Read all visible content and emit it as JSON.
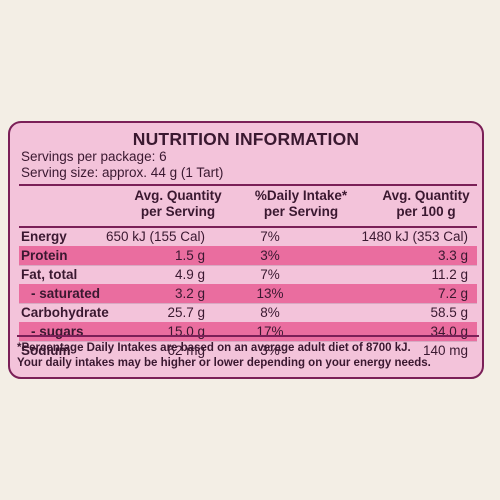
{
  "panel": {
    "title": "NUTRITION INFORMATION",
    "servings_per_package": "Servings per package: 6",
    "serving_size": "Serving size: approx. 44 g (1 Tart)",
    "headers": {
      "col1": "Avg. Quantity per Serving",
      "col2": "%Daily Intake* per Serving",
      "col3": "Avg. Quantity per 100 g"
    },
    "rows": [
      {
        "name": "Energy",
        "per_serving": "650 kJ (155 Cal)",
        "daily_intake": "7%",
        "per_100g": "1480 kJ (353 Cal)"
      },
      {
        "name": "Protein",
        "per_serving": "1.5 g",
        "daily_intake": "3%",
        "per_100g": "3.3 g"
      },
      {
        "name": "Fat, total",
        "per_serving": "4.9 g",
        "daily_intake": "7%",
        "per_100g": "11.2 g"
      },
      {
        "name": "- saturated",
        "per_serving": "3.2 g",
        "daily_intake": "13%",
        "per_100g": "7.2 g"
      },
      {
        "name": "Carbohydrate",
        "per_serving": "25.7 g",
        "daily_intake": "8%",
        "per_100g": "58.5 g"
      },
      {
        "name": "- sugars",
        "per_serving": "15.0 g",
        "daily_intake": "17%",
        "per_100g": "34.0 g"
      },
      {
        "name": "Sodium",
        "per_serving": "62 mg",
        "daily_intake": "3%",
        "per_100g": "140 mg"
      }
    ],
    "footnote_line1": "*Percentage Daily Intakes are based on an average adult diet of 8700 kJ.",
    "footnote_line2": "Your daily intakes may be higher or lower depending on your energy needs."
  },
  "colors": {
    "panel_bg": "#f3c3da",
    "row_highlight": "#ea6d9f",
    "border": "#7a1f57",
    "page_bg": "#f3eee5"
  }
}
